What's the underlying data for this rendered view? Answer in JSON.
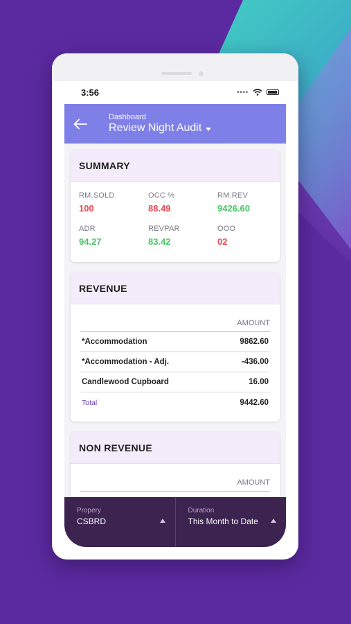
{
  "status_bar": {
    "time": "3:56"
  },
  "header": {
    "subtitle": "Dashboard",
    "title": "Review Night Audit"
  },
  "summary": {
    "title": "SUMMARY",
    "metrics": [
      {
        "label": "RM.SOLD",
        "value": "100",
        "color": "#e84a55"
      },
      {
        "label": "OCC %",
        "value": "88.49",
        "color": "#e84a55"
      },
      {
        "label": "RM.REV",
        "value": "9426.60",
        "color": "#4bc466"
      },
      {
        "label": "ADR",
        "value": "94.27",
        "color": "#4bc466"
      },
      {
        "label": "REVPAR",
        "value": "83.42",
        "color": "#4bc466"
      },
      {
        "label": "OOO",
        "value": "02",
        "color": "#e84a55"
      }
    ]
  },
  "revenue": {
    "title": "REVENUE",
    "amount_header": "AMOUNT",
    "rows": [
      {
        "name": "*Accommodation",
        "amount": "9862.60"
      },
      {
        "name": "*Accommodation - Adj.",
        "amount": "-436.00"
      },
      {
        "name": "Candlewood Cupboard",
        "amount": "16.00"
      }
    ],
    "total_label": "Total",
    "total_amount": "9442.60"
  },
  "non_revenue": {
    "title": "NON REVENUE",
    "amount_header": "AMOUNT"
  },
  "bottom_bar": {
    "property_label": "Propery",
    "property_value": "CSBRD",
    "duration_label": "Duration",
    "duration_value": "This Month to Date"
  },
  "colors": {
    "header": "#7f7fe8",
    "card_header": "#f4ebfb",
    "bottom_bar": "#3d2350",
    "background": "#5b2aa0"
  }
}
